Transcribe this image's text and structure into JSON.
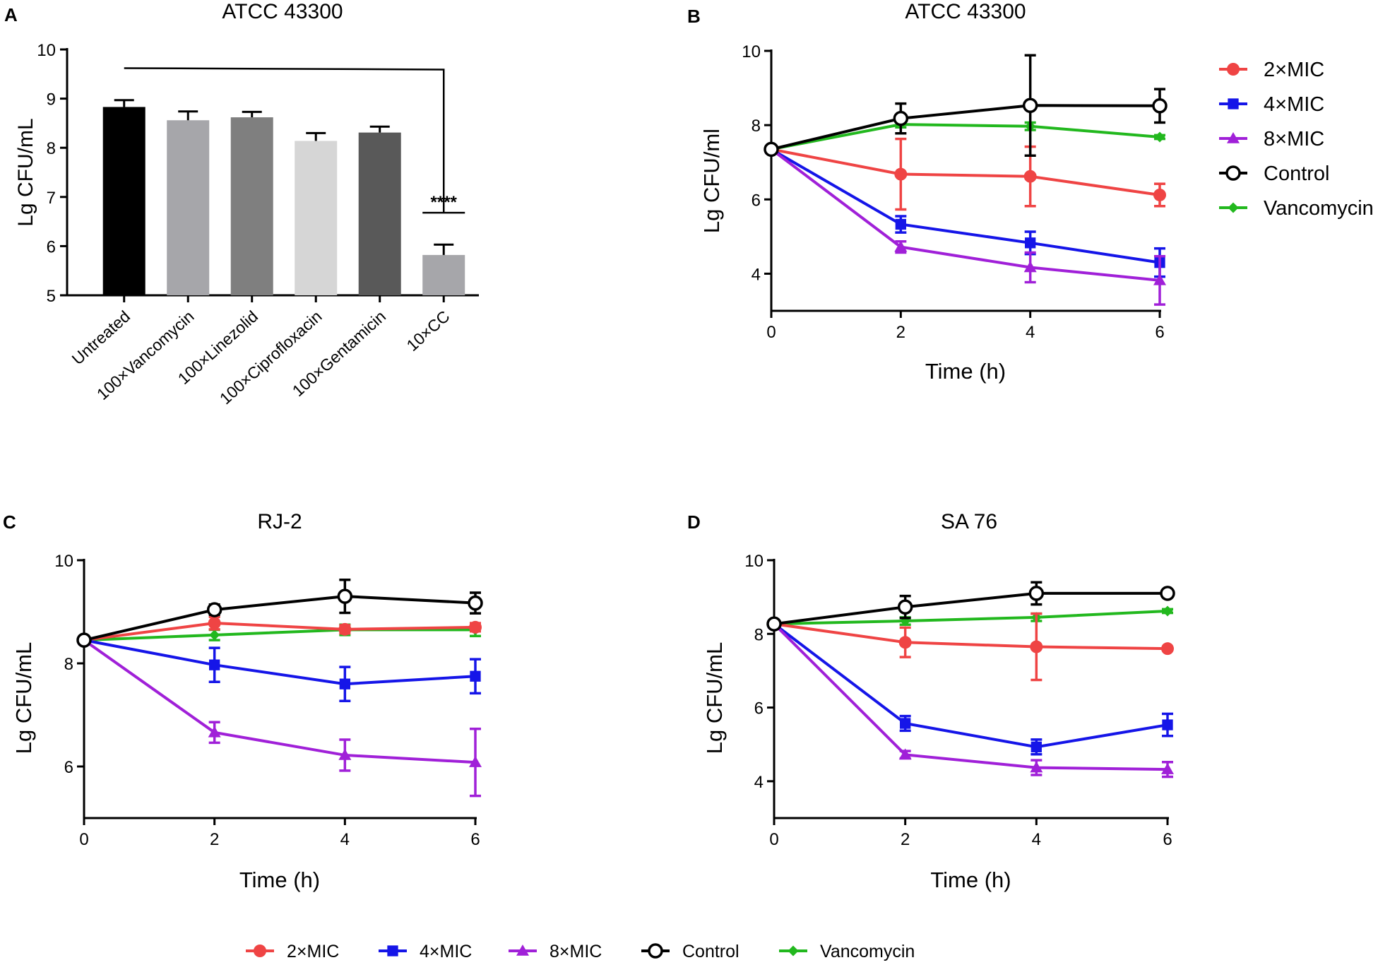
{
  "chart_data": [
    {
      "panel": "A",
      "type": "bar",
      "title": "ATCC 43300",
      "ylabel": "Lg CFU/mL",
      "xlabel": "",
      "ylim": [
        5,
        10
      ],
      "yticks": [
        5,
        6,
        7,
        8,
        9,
        10
      ],
      "categories": [
        "Untreated",
        "100×Vancomycin",
        "100×Linezolid",
        "100×Ciprofloxacin",
        "100×Gentamicin",
        "10×CC"
      ],
      "values": [
        8.83,
        8.56,
        8.62,
        8.14,
        8.31,
        5.82
      ],
      "errors": [
        0.14,
        0.18,
        0.11,
        0.16,
        0.12,
        0.21
      ],
      "colors": [
        "#000000",
        "#a6a6aa",
        "#7f7f7f",
        "#d6d6d6",
        "#595959",
        "#a6a6aa"
      ],
      "annotation": "****"
    },
    {
      "panel": "B",
      "type": "line",
      "title": "ATCC 43300",
      "xlabel": "Time (h)",
      "ylabel": "Lg CFU/ml",
      "xlim": [
        0,
        6
      ],
      "ylim": [
        3,
        10
      ],
      "xticks": [
        0,
        2,
        4,
        6
      ],
      "yticks": [
        4,
        6,
        8,
        10
      ],
      "x": [
        0,
        2,
        4,
        6
      ],
      "series": [
        {
          "name": "2×MIC",
          "color": "#ef4444",
          "marker": "circle",
          "values": [
            7.35,
            6.68,
            6.62,
            6.12
          ],
          "errors": [
            0.3,
            0.95,
            0.8,
            0.3
          ]
        },
        {
          "name": "4×MIC",
          "color": "#1515e8",
          "marker": "square",
          "values": [
            7.35,
            5.33,
            4.83,
            4.3
          ],
          "errors": [
            0.2,
            0.22,
            0.3,
            0.38
          ]
        },
        {
          "name": "8×MIC",
          "color": "#a020d8",
          "marker": "triangle",
          "values": [
            7.35,
            4.72,
            4.17,
            3.82
          ],
          "errors": [
            0.2,
            0.15,
            0.4,
            0.65
          ]
        },
        {
          "name": "Control",
          "color": "#000000",
          "marker": "open-circle",
          "values": [
            7.35,
            8.18,
            8.53,
            8.52
          ],
          "errors": [
            0.15,
            0.4,
            1.35,
            0.45
          ]
        },
        {
          "name": "Vancomycin",
          "color": "#22b81e",
          "marker": "diamond",
          "values": [
            7.35,
            8.02,
            7.97,
            7.68
          ],
          "errors": [
            0.2,
            0.08,
            0.1,
            0.05
          ]
        }
      ]
    },
    {
      "panel": "C",
      "type": "line",
      "title": "RJ-2",
      "xlabel": "Time (h)",
      "ylabel": "Lg CFU/mL",
      "xlim": [
        0,
        6
      ],
      "ylim": [
        5,
        10
      ],
      "xticks": [
        0,
        2,
        4,
        6
      ],
      "yticks": [
        6,
        8,
        10
      ],
      "x": [
        0,
        2,
        4,
        6
      ],
      "series": [
        {
          "name": "2×MIC",
          "color": "#ef4444",
          "marker": "circle",
          "values": [
            8.45,
            8.78,
            8.66,
            8.7
          ],
          "errors": [
            0.15,
            0.12,
            0.08,
            0.08
          ]
        },
        {
          "name": "4×MIC",
          "color": "#1515e8",
          "marker": "square",
          "values": [
            8.45,
            7.97,
            7.6,
            7.75
          ],
          "errors": [
            0.1,
            0.33,
            0.33,
            0.33
          ]
        },
        {
          "name": "8×MIC",
          "color": "#a020d8",
          "marker": "triangle",
          "values": [
            8.45,
            6.66,
            6.22,
            6.08
          ],
          "errors": [
            0.1,
            0.2,
            0.3,
            0.65
          ]
        },
        {
          "name": "Control",
          "color": "#000000",
          "marker": "open-circle",
          "values": [
            8.45,
            9.04,
            9.3,
            9.17
          ],
          "errors": [
            0.1,
            0.1,
            0.32,
            0.2
          ]
        },
        {
          "name": "Vancomycin",
          "color": "#22b81e",
          "marker": "diamond",
          "values": [
            8.45,
            8.55,
            8.65,
            8.65
          ],
          "errors": [
            0.1,
            0.1,
            0.1,
            0.12
          ]
        }
      ]
    },
    {
      "panel": "D",
      "type": "line",
      "title": "SA 76",
      "xlabel": "Time (h)",
      "ylabel": "Lg CFU/mL",
      "xlim": [
        0,
        6
      ],
      "ylim": [
        3,
        10
      ],
      "xticks": [
        0,
        2,
        4,
        6
      ],
      "yticks": [
        4,
        6,
        8,
        10
      ],
      "x": [
        0,
        2,
        4,
        6
      ],
      "series": [
        {
          "name": "2×MIC",
          "color": "#ef4444",
          "marker": "circle",
          "values": [
            8.27,
            7.77,
            7.65,
            7.6
          ],
          "errors": [
            0.1,
            0.4,
            0.9,
            0.05
          ]
        },
        {
          "name": "4×MIC",
          "color": "#1515e8",
          "marker": "square",
          "values": [
            8.27,
            5.57,
            4.93,
            5.53
          ],
          "errors": [
            0.1,
            0.2,
            0.2,
            0.3
          ]
        },
        {
          "name": "8×MIC",
          "color": "#a020d8",
          "marker": "triangle",
          "values": [
            8.27,
            4.72,
            4.37,
            4.32
          ],
          "errors": [
            0.1,
            0.1,
            0.2,
            0.2
          ]
        },
        {
          "name": "Control",
          "color": "#000000",
          "marker": "open-circle",
          "values": [
            8.27,
            8.73,
            9.1,
            9.1
          ],
          "errors": [
            0.1,
            0.3,
            0.3,
            0.05
          ]
        },
        {
          "name": "Vancomycin",
          "color": "#22b81e",
          "marker": "diamond",
          "values": [
            8.27,
            8.35,
            8.45,
            8.62
          ],
          "errors": [
            0.1,
            0.1,
            0.1,
            0.05
          ]
        }
      ]
    }
  ],
  "legend_right": {
    "items": [
      "2×MIC",
      "4×MIC",
      "8×MIC",
      "Control",
      "Vancomycin"
    ]
  },
  "legend_bottom": {
    "items": [
      "2×MIC",
      "4×MIC",
      "8×MIC",
      "Control",
      "Vancomycin"
    ]
  }
}
